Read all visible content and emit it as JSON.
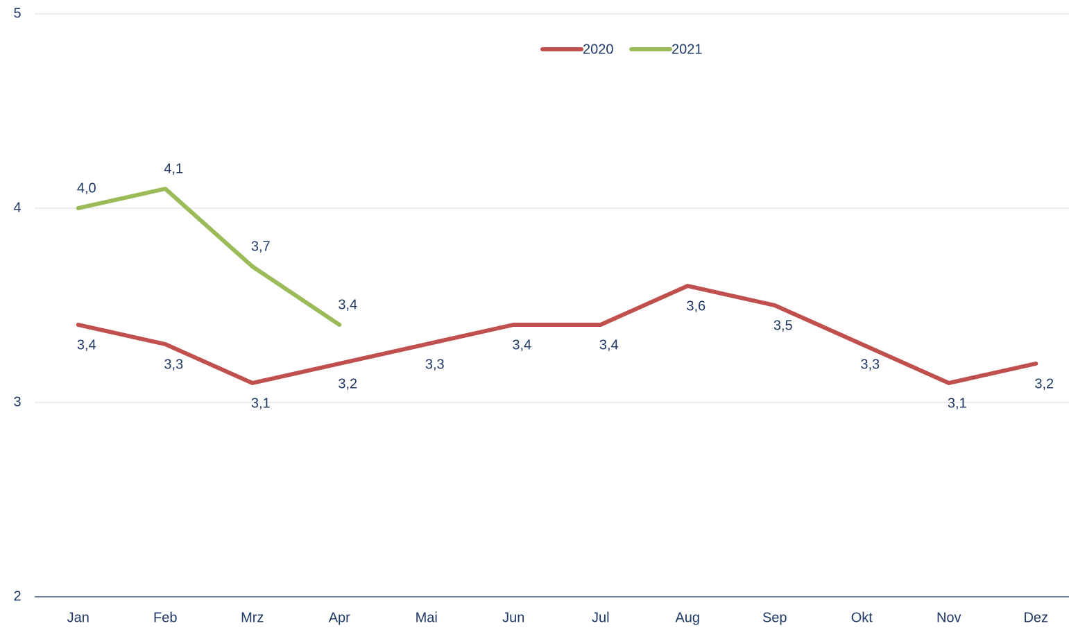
{
  "chart_data": {
    "type": "line",
    "categories": [
      "Jan",
      "Feb",
      "Mrz",
      "Apr",
      "Mai",
      "Jun",
      "Jul",
      "Aug",
      "Sep",
      "Okt",
      "Nov",
      "Dez"
    ],
    "series": [
      {
        "name": "2020",
        "color": "#c0504d",
        "values": [
          3.4,
          3.3,
          3.1,
          3.2,
          3.3,
          3.4,
          3.4,
          3.6,
          3.5,
          3.3,
          3.1,
          3.2
        ],
        "value_labels": [
          "3,4",
          "3,3",
          "3,1",
          "3,2",
          "3,3",
          "3,4",
          "3,4",
          "3,6",
          "3,5",
          "3,3",
          "3,1",
          "3,2"
        ]
      },
      {
        "name": "2021",
        "color": "#9bbb59",
        "values": [
          4.0,
          4.1,
          3.7,
          3.4,
          null,
          null,
          null,
          null,
          null,
          null,
          null,
          null
        ],
        "value_labels": [
          "4,0",
          "4,1",
          "3,7",
          "3,4",
          null,
          null,
          null,
          null,
          null,
          null,
          null,
          null
        ]
      }
    ],
    "ylim": [
      2,
      5
    ],
    "yticks": [
      2,
      3,
      4,
      5
    ],
    "grid": true,
    "legend": "top"
  }
}
